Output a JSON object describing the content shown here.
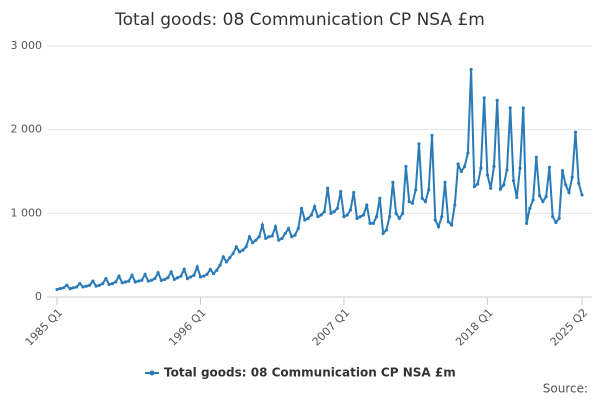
{
  "chart_data": {
    "type": "line",
    "title": "Total goods: 08 Communication CP NSA £m",
    "source_label": "Source:",
    "categories": [
      "1985 Q1",
      null,
      null,
      null,
      null,
      null,
      null,
      null,
      null,
      null,
      null,
      null,
      null,
      null,
      null,
      null,
      null,
      null,
      null,
      null,
      null,
      null,
      null,
      null,
      null,
      null,
      null,
      null,
      null,
      null,
      null,
      null,
      null,
      null,
      null,
      null,
      null,
      null,
      null,
      null,
      null,
      null,
      null,
      null,
      "1996 Q1",
      null,
      null,
      null,
      null,
      null,
      null,
      null,
      null,
      null,
      null,
      null,
      null,
      null,
      null,
      null,
      null,
      null,
      null,
      null,
      null,
      null,
      null,
      null,
      null,
      null,
      null,
      null,
      null,
      null,
      null,
      null,
      null,
      null,
      null,
      null,
      null,
      null,
      null,
      null,
      null,
      null,
      null,
      null,
      "2007 Q1",
      null,
      null,
      null,
      null,
      null,
      null,
      null,
      null,
      null,
      null,
      null,
      null,
      null,
      null,
      null,
      null,
      null,
      null,
      null,
      null,
      null,
      null,
      null,
      null,
      null,
      null,
      null,
      null,
      null,
      null,
      null,
      null,
      null,
      null,
      null,
      null,
      null,
      null,
      null,
      null,
      null,
      null,
      null,
      "2018 Q1",
      null,
      null,
      null,
      null,
      null,
      null,
      null,
      null,
      null,
      null,
      null,
      null,
      null,
      null,
      null,
      null,
      null,
      null,
      null,
      null,
      null,
      null,
      null,
      null,
      null,
      null,
      null,
      null,
      "2025 Q2"
    ],
    "series": [
      {
        "name": "Total goods: 08 Communication CP NSA £m",
        "color": "#2b7bb9",
        "values": [
          90,
          100,
          110,
          140,
          100,
          110,
          120,
          160,
          120,
          130,
          140,
          190,
          130,
          140,
          160,
          220,
          150,
          160,
          180,
          250,
          170,
          180,
          190,
          260,
          180,
          190,
          200,
          270,
          190,
          200,
          220,
          290,
          200,
          210,
          230,
          300,
          210,
          230,
          250,
          330,
          220,
          240,
          260,
          360,
          240,
          250,
          270,
          330,
          280,
          320,
          380,
          480,
          420,
          470,
          520,
          600,
          540,
          560,
          600,
          720,
          650,
          680,
          720,
          860,
          700,
          720,
          730,
          840,
          680,
          700,
          760,
          820,
          720,
          740,
          820,
          1060,
          920,
          940,
          980,
          1080,
          960,
          980,
          1020,
          1300,
          1000,
          1020,
          1060,
          1260,
          960,
          980,
          1040,
          1250,
          940,
          960,
          980,
          1100,
          880,
          880,
          960,
          1180,
          760,
          800,
          960,
          1370,
          1000,
          940,
          1000,
          1560,
          1140,
          1120,
          1280,
          1830,
          1180,
          1140,
          1280,
          1930,
          920,
          840,
          960,
          1370,
          900,
          860,
          1100,
          1590,
          1500,
          1560,
          1720,
          2720,
          1320,
          1350,
          1540,
          2380,
          1460,
          1300,
          1560,
          2350,
          1290,
          1340,
          1520,
          2260,
          1390,
          1190,
          1540,
          2260,
          880,
          1060,
          1160,
          1670,
          1210,
          1140,
          1200,
          1550,
          960,
          890,
          940,
          1510,
          1340,
          1250,
          1430,
          1970,
          1360,
          1220
        ]
      }
    ],
    "ylim": [
      0,
      3000
    ],
    "yticks": [
      0,
      {
        "value": 1000,
        "label": "1 000"
      },
      {
        "value": 2000,
        "label": "2 000"
      },
      {
        "value": 3000,
        "label": "3 000"
      }
    ],
    "grid": true
  }
}
